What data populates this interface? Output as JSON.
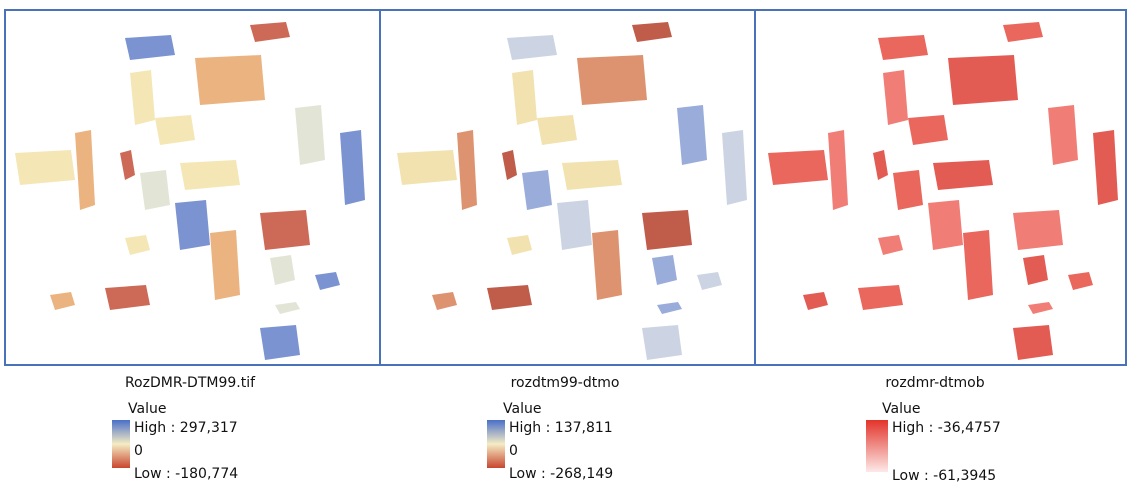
{
  "panels": [
    {
      "title": "RozDMR-DTM99.tif",
      "legend": {
        "heading": "Value",
        "high": "High : 297,317",
        "zero": "0",
        "low": "Low : -180,774"
      }
    },
    {
      "title": "rozdtm99-dtmo",
      "legend": {
        "heading": "Value",
        "high": "High : 137,811",
        "zero": "0",
        "low": "Low : -268,149"
      }
    },
    {
      "title": "rozdmr-dtmob",
      "legend": {
        "heading": "Value",
        "high": "High : -36,4757",
        "low": "Low : -61,3945"
      }
    }
  ]
}
